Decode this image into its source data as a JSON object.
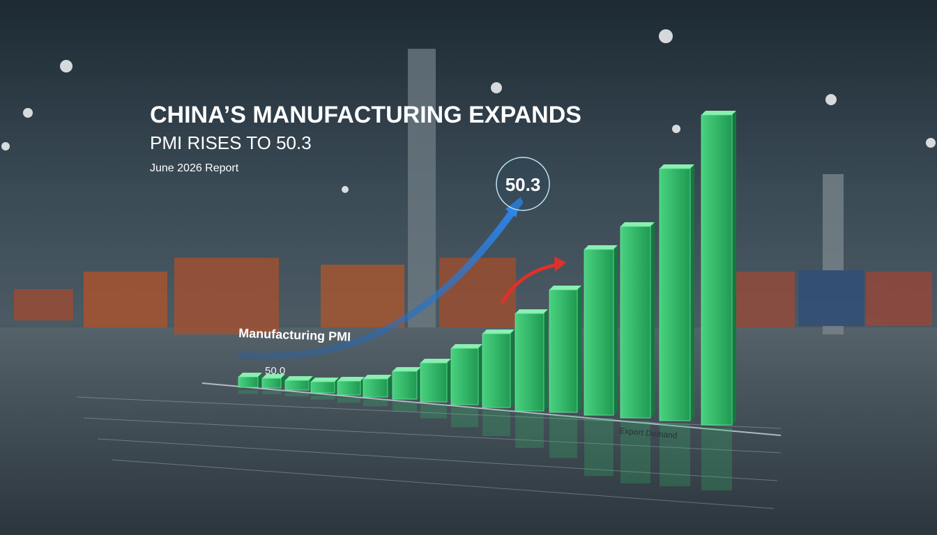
{
  "header": {
    "title": "CHINA’S MANUFACTURING EXPANDS",
    "subtitle": "PMI RISES TO 50.3",
    "date": "June 2026 Report"
  },
  "graphic": {
    "callout": "50.3",
    "line_label": "Manufacturing PMI",
    "baseline_label": "50.0",
    "axis_label": "Export Demand"
  }
}
